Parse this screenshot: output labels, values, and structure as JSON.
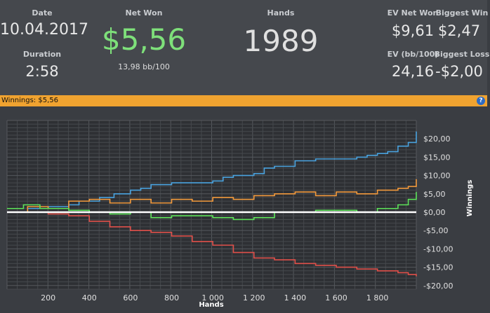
{
  "stats": {
    "date_label": "Date",
    "date_value": "10.04.2017",
    "duration_label": "Duration",
    "duration_value": "2:58",
    "net_won_label": "Net Won",
    "net_won_value": "$5,56",
    "net_won_sub": "13,98 bb/100",
    "hands_label": "Hands",
    "hands_value": "1989",
    "ev_net_won_label": "EV Net Won",
    "ev_net_won_value": "$9,61",
    "biggest_win_label": "Biggest Win",
    "biggest_win_value": "$2,47",
    "ev_bb100_label": "EV (bb/100)",
    "ev_bb100_value": "24,16",
    "biggest_loss_label": "Biggest Loss",
    "biggest_loss_value": "-$2,00"
  },
  "winnings_bar": {
    "text": "Winnings:  $5,56",
    "help_icon": "?"
  },
  "colors": {
    "net_won": "#7ee07a",
    "bar": "#f0a330",
    "blue": "#4aa3df",
    "orange": "#f39a3c",
    "green": "#5ee35a",
    "red": "#e0504a",
    "zero_line": "#ffffff"
  },
  "chart_data": {
    "type": "line",
    "xlabel": "Hands",
    "ylabel": "Winnings",
    "xlim": [
      0,
      1989
    ],
    "ylim": [
      -21,
      25
    ],
    "x_ticks": [
      200,
      400,
      600,
      800,
      1000,
      1200,
      1400,
      1600,
      1800
    ],
    "x_tick_labels": [
      "200",
      "400",
      "600",
      "800",
      "1 000",
      "1 200",
      "1 400",
      "1 600",
      "1 800"
    ],
    "y_ticks": [
      20,
      15,
      10,
      5,
      0,
      -5,
      -10,
      -15,
      -20
    ],
    "y_tick_labels": [
      "$20,00",
      "$15,00",
      "$10,00",
      "$5,00",
      "$0,00",
      "-$5,00",
      "-$10,00",
      "-$15,00",
      "-$20,00"
    ],
    "grid": true,
    "series": [
      {
        "color": "#4aa3df",
        "x": [
          0,
          100,
          200,
          300,
          350,
          450,
          520,
          600,
          650,
          700,
          750,
          800,
          900,
          1000,
          1050,
          1100,
          1200,
          1250,
          1300,
          1400,
          1500,
          1600,
          1700,
          1750,
          1800,
          1850,
          1900,
          1950,
          1989
        ],
        "values": [
          0,
          1,
          1.5,
          2,
          3,
          4,
          5,
          6,
          6.5,
          7.5,
          7.5,
          8,
          8,
          8.5,
          9.5,
          10,
          10.5,
          12,
          12.5,
          14,
          14.5,
          14.5,
          15,
          15.5,
          16,
          16.5,
          18,
          19,
          22
        ]
      },
      {
        "color": "#f39a3c",
        "x": [
          0,
          100,
          200,
          300,
          400,
          500,
          600,
          700,
          800,
          900,
          1000,
          1100,
          1200,
          1300,
          1400,
          1500,
          1600,
          1700,
          1800,
          1900,
          1950,
          1989
        ],
        "values": [
          0,
          1.5,
          1,
          3,
          3.5,
          2.5,
          3.5,
          2.5,
          3.5,
          3,
          4,
          3.5,
          4.5,
          5,
          5.5,
          4.5,
          5.5,
          5,
          6,
          6.5,
          7,
          9
        ]
      },
      {
        "color": "#5ee35a",
        "x": [
          0,
          80,
          160,
          240,
          300,
          400,
          500,
          600,
          700,
          800,
          900,
          1000,
          1100,
          1200,
          1300,
          1400,
          1500,
          1600,
          1700,
          1800,
          1900,
          1950,
          1989
        ],
        "values": [
          1,
          2,
          1,
          1,
          0.5,
          0,
          -0.5,
          0,
          -1.5,
          -1,
          -1,
          -1.5,
          -2,
          -1.5,
          0,
          0,
          0.5,
          0.5,
          0,
          1,
          2,
          3.5,
          5.5
        ]
      },
      {
        "color": "#e0504a",
        "x": [
          0,
          100,
          200,
          300,
          400,
          500,
          600,
          700,
          800,
          900,
          1000,
          1100,
          1200,
          1300,
          1400,
          1500,
          1600,
          1700,
          1800,
          1900,
          1950,
          1989
        ],
        "values": [
          0,
          0,
          -0.5,
          -1,
          -2.5,
          -4,
          -5,
          -5.5,
          -6.5,
          -8,
          -9,
          -11,
          -12.5,
          -13,
          -14,
          -14.5,
          -15,
          -15.5,
          -16,
          -16.5,
          -17,
          -17.5
        ]
      },
      {
        "color": "#ffffff",
        "x": [
          0,
          1989
        ],
        "values": [
          0,
          0
        ]
      }
    ]
  }
}
